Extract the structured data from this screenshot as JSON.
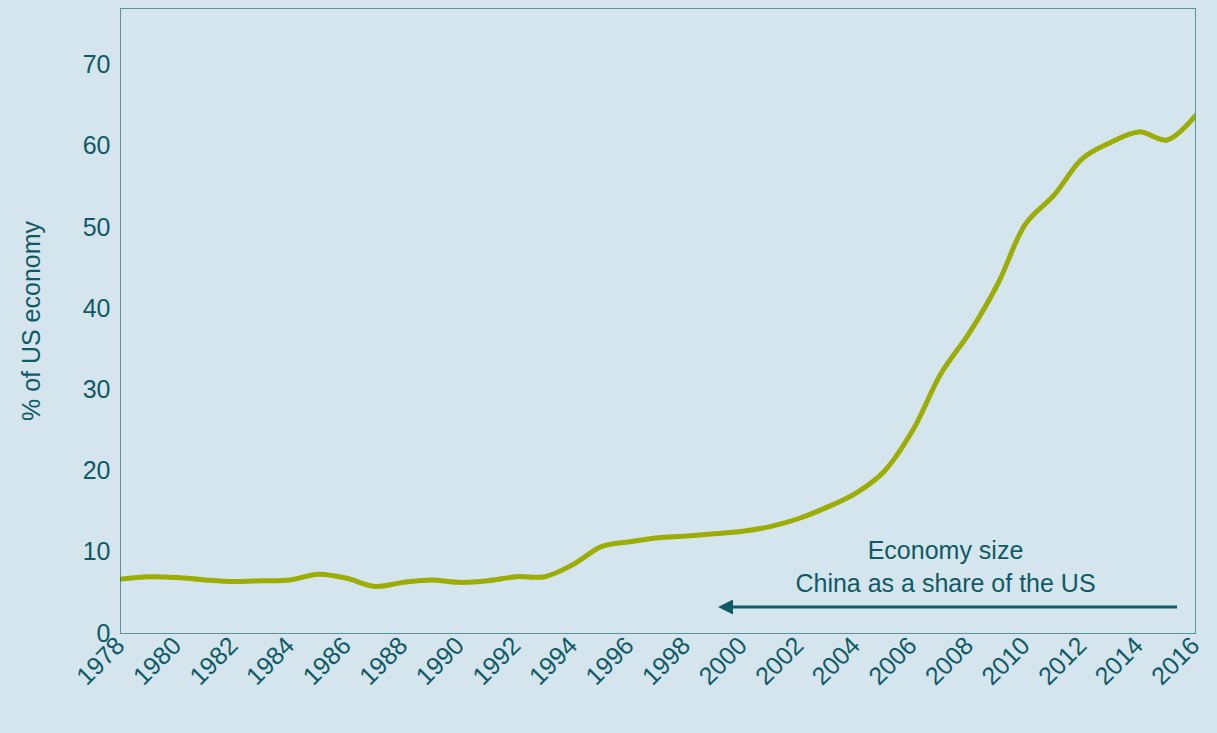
{
  "chart_data": {
    "type": "line",
    "y_label": "% of US economy",
    "annotation": [
      "Economy size",
      "China as a share of the US"
    ],
    "x": [
      1978,
      1979,
      1980,
      1981,
      1982,
      1983,
      1984,
      1985,
      1986,
      1987,
      1988,
      1989,
      1990,
      1991,
      1992,
      1993,
      1994,
      1995,
      1996,
      1997,
      1998,
      1999,
      2000,
      2001,
      2002,
      2003,
      2004,
      2005,
      2006,
      2007,
      2008,
      2009,
      2010,
      2011,
      2012,
      2013,
      2014,
      2015,
      2016
    ],
    "values": [
      6.7,
      7.0,
      6.9,
      6.6,
      6.4,
      6.5,
      6.6,
      7.3,
      6.8,
      5.8,
      6.3,
      6.6,
      6.3,
      6.5,
      7.0,
      7.0,
      8.5,
      10.7,
      11.3,
      11.8,
      12.0,
      12.3,
      12.6,
      13.2,
      14.2,
      15.6,
      17.3,
      20.0,
      25.0,
      32.0,
      37.0,
      43.0,
      50.5,
      54.0,
      58.5,
      60.5,
      61.8,
      60.8,
      63.8
    ],
    "color": "#9cad00",
    "xlim": [
      1978,
      2016
    ],
    "xticks": [
      1978,
      1980,
      1982,
      1984,
      1986,
      1988,
      1990,
      1992,
      1994,
      1996,
      1998,
      2000,
      2002,
      2004,
      2006,
      2008,
      2010,
      2012,
      2014,
      2016
    ],
    "ylim": [
      0,
      77
    ],
    "yticks": [
      0,
      10,
      20,
      30,
      40,
      50,
      60,
      70
    ],
    "grid": false
  }
}
